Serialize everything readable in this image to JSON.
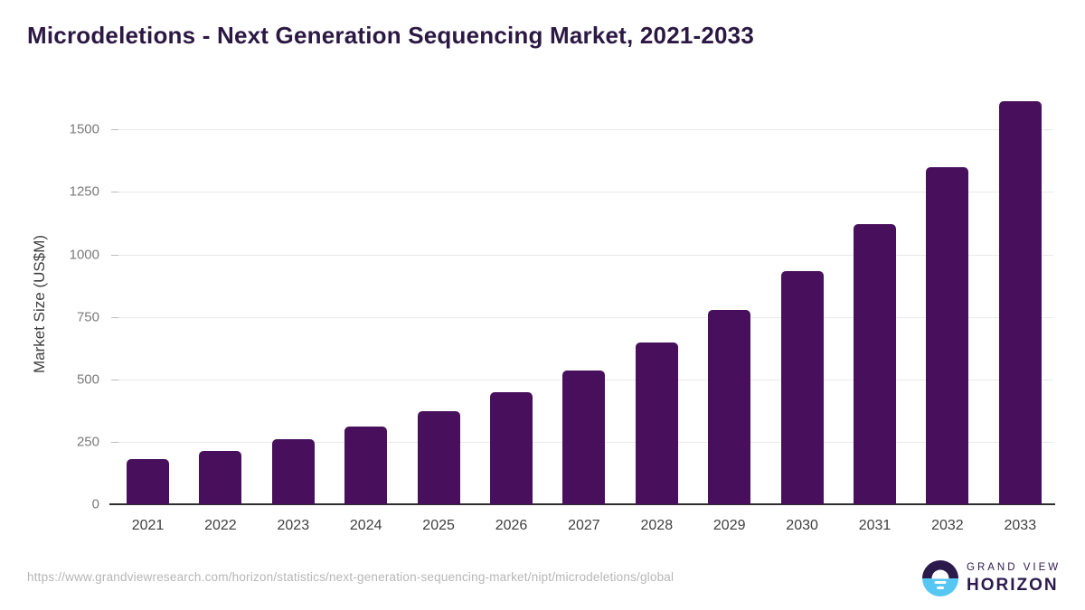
{
  "header": {
    "title": "Microdeletions - Next Generation Sequencing Market, 2021-2033"
  },
  "chart_data": {
    "type": "bar",
    "title": "Microdeletions - Next Generation Sequencing Market, 2021-2033",
    "categories": [
      "2021",
      "2022",
      "2023",
      "2024",
      "2025",
      "2026",
      "2027",
      "2028",
      "2029",
      "2030",
      "2031",
      "2032",
      "2033"
    ],
    "values": [
      181,
      215,
      260,
      312,
      374,
      448,
      537,
      648,
      778,
      934,
      1121,
      1350,
      1614
    ],
    "xlabel": "",
    "ylabel": "Market Size (US$M)",
    "ylim": [
      0,
      1675
    ],
    "yticks": [
      0,
      250,
      500,
      750,
      1000,
      1250,
      1500
    ],
    "grid": true,
    "legend": false,
    "bar_color": "#48105C"
  },
  "footer": {
    "source_url": "https://www.grandviewresearch.com/horizon/statistics/next-generation-sequencing-market/nipt/microdeletions/global",
    "logo": {
      "line1": "GRAND VIEW",
      "line2": "HORIZON"
    }
  },
  "colors": {
    "title_text": "#2b1843",
    "bar": "#48105C",
    "grid": "#e9e9e9",
    "axis_line": "#2d2d2d",
    "y_tick_text": "#7a7a7a",
    "x_tick_text": "#3f3f3f",
    "url_text": "#b6b6b6",
    "logo_dark": "#2b1b4d",
    "logo_blue": "#56c6f2"
  }
}
